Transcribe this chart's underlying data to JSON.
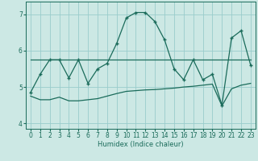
{
  "xlabel": "Humidex (Indice chaleur)",
  "ylabel": "",
  "background_color": "#cce8e4",
  "grid_color": "#99cccc",
  "line_color": "#1a6b5a",
  "xlim": [
    -0.5,
    23.5
  ],
  "ylim": [
    3.85,
    7.35
  ],
  "yticks": [
    4,
    5,
    6,
    7
  ],
  "xticks": [
    0,
    1,
    2,
    3,
    4,
    5,
    6,
    7,
    8,
    9,
    10,
    11,
    12,
    13,
    14,
    15,
    16,
    17,
    18,
    19,
    20,
    21,
    22,
    23
  ],
  "line1_x": [
    0,
    1,
    2,
    3,
    4,
    5,
    6,
    7,
    8,
    9,
    10,
    11,
    12,
    13,
    14,
    15,
    16,
    17,
    18,
    19,
    20,
    21,
    22,
    23
  ],
  "line1_y": [
    4.85,
    5.35,
    5.75,
    5.75,
    5.25,
    5.75,
    5.1,
    5.5,
    5.65,
    6.2,
    6.9,
    7.05,
    7.05,
    6.8,
    6.3,
    5.5,
    5.2,
    5.75,
    5.2,
    5.35,
    4.5,
    6.35,
    6.55,
    5.6
  ],
  "line2_x": [
    0,
    23
  ],
  "line2_y": [
    5.75,
    5.75
  ],
  "line3_x": [
    0,
    1,
    2,
    3,
    4,
    5,
    6,
    7,
    8,
    9,
    10,
    11,
    12,
    13,
    14,
    15,
    16,
    17,
    18,
    19,
    20,
    21,
    22,
    23
  ],
  "line3_y": [
    4.75,
    4.65,
    4.65,
    4.72,
    4.62,
    4.62,
    4.65,
    4.68,
    4.75,
    4.82,
    4.88,
    4.9,
    4.92,
    4.93,
    4.95,
    4.97,
    5.0,
    5.02,
    5.05,
    5.08,
    4.48,
    4.95,
    5.05,
    5.1
  ]
}
